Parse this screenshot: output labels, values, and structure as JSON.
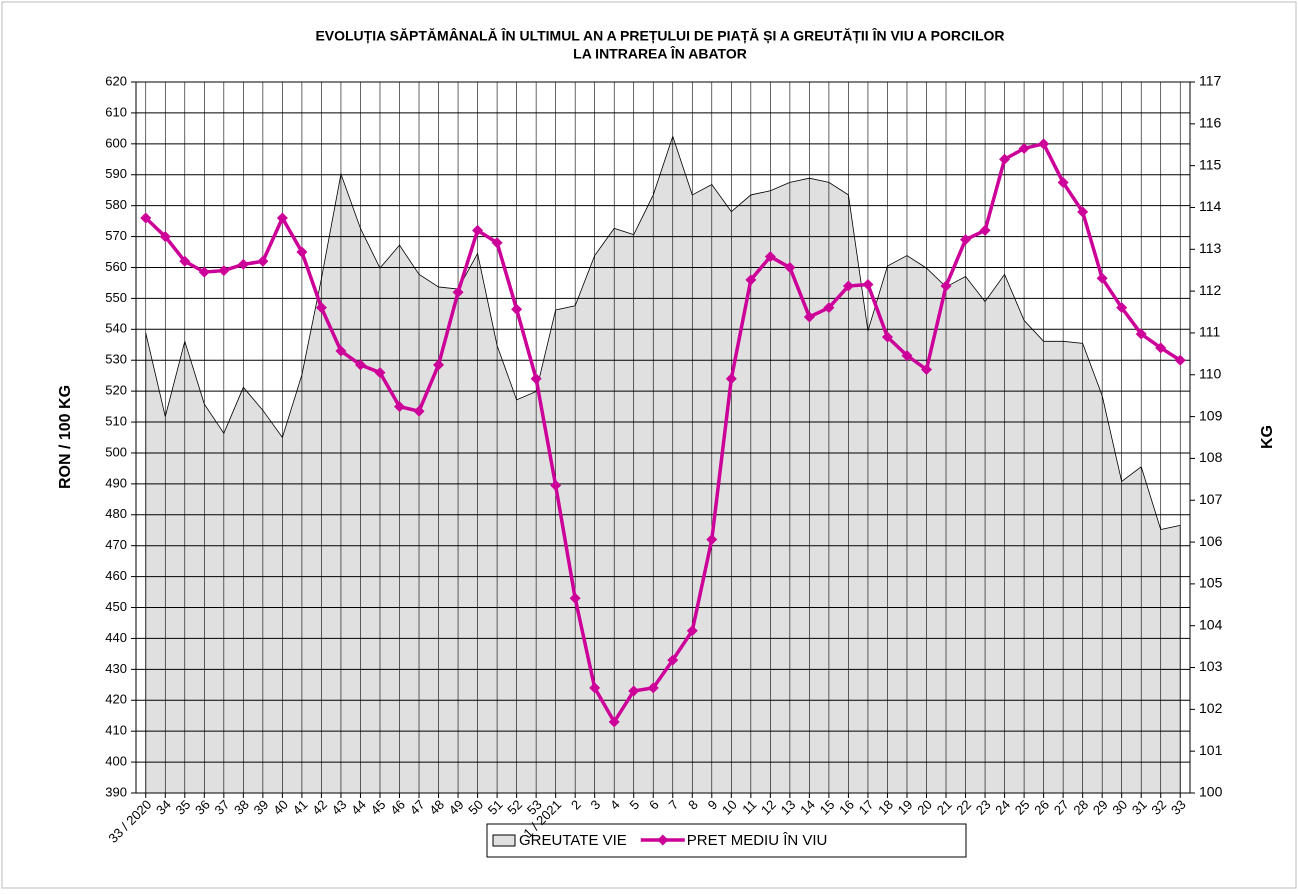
{
  "chart_data": {
    "type": "line",
    "title": [
      "EVOLUȚIA SĂPTĂMÂNALĂ ÎN ULTIMUL AN A PREȚULUI  DE PIAȚĂ ȘI A GREUTĂȚII  ÎN VIU A PORCILOR",
      "LA INTRAREA ÎN ABATOR"
    ],
    "y_label": "RON / 100 KG",
    "y2_label": "KG",
    "categories": [
      "33 / 2020",
      "34",
      "35",
      "36",
      "37",
      "38",
      "39",
      "40",
      "41",
      "42",
      "43",
      "44",
      "45",
      "46",
      "47",
      "48",
      "49",
      "50",
      "51",
      "52",
      "53",
      "1 / 2021",
      "2",
      "3",
      "4",
      "5",
      "6",
      "7",
      "8",
      "9",
      "10",
      "11",
      "12",
      "13",
      "14",
      "15",
      "16",
      "17",
      "18",
      "19",
      "20",
      "21",
      "22",
      "23",
      "24",
      "25",
      "26",
      "27",
      "28",
      "29",
      "30",
      "31",
      "32",
      "33"
    ],
    "series": [
      {
        "name": "GREUTATE VIE",
        "type": "area",
        "axis": "y2",
        "color": "#e0e0e0",
        "values": [
          111.0,
          109.0,
          110.8,
          109.3,
          108.6,
          109.7,
          109.15,
          108.5,
          110.0,
          112.3,
          114.8,
          113.5,
          112.55,
          113.1,
          112.4,
          112.1,
          112.05,
          112.9,
          110.7,
          109.4,
          109.6,
          111.55,
          111.65,
          112.85,
          113.5,
          113.35,
          114.3,
          115.7,
          114.3,
          114.55,
          113.9,
          114.3,
          114.4,
          114.6,
          114.7,
          114.6,
          114.3,
          111.05,
          112.6,
          112.85,
          112.55,
          112.1,
          112.35,
          111.75,
          112.4,
          111.3,
          110.8,
          110.8,
          110.75,
          109.5,
          107.45,
          107.8,
          106.3,
          106.4
        ]
      },
      {
        "name": "PRET MEDIU ÎN VIU",
        "type": "line",
        "color": "#cc0099",
        "values": [
          576,
          570,
          562,
          558.5,
          559,
          561,
          562,
          576,
          565,
          547,
          533,
          528.5,
          526,
          515,
          513.5,
          528.5,
          552,
          572,
          568,
          546.5,
          524,
          489.5,
          453,
          424,
          413,
          423,
          424,
          433,
          442.5,
          472,
          524,
          556,
          563.5,
          560,
          544,
          547,
          554,
          554.5,
          537.5,
          531.5,
          527,
          554,
          569,
          572,
          595,
          598.5,
          600,
          587.5,
          578,
          556.5,
          547,
          538.5,
          534,
          530
        ]
      }
    ],
    "ylim": [
      390,
      620
    ],
    "yticks": [
      390,
      400,
      410,
      420,
      430,
      440,
      450,
      460,
      470,
      480,
      490,
      500,
      510,
      520,
      530,
      540,
      550,
      560,
      570,
      580,
      590,
      600,
      610,
      620
    ],
    "y2lim": [
      100,
      117
    ],
    "y2ticks": [
      100,
      101,
      102,
      103,
      104,
      105,
      106,
      107,
      108,
      109,
      110,
      111,
      112,
      113,
      114,
      115,
      116,
      117
    ],
    "grid": true,
    "legend": "bottom"
  }
}
